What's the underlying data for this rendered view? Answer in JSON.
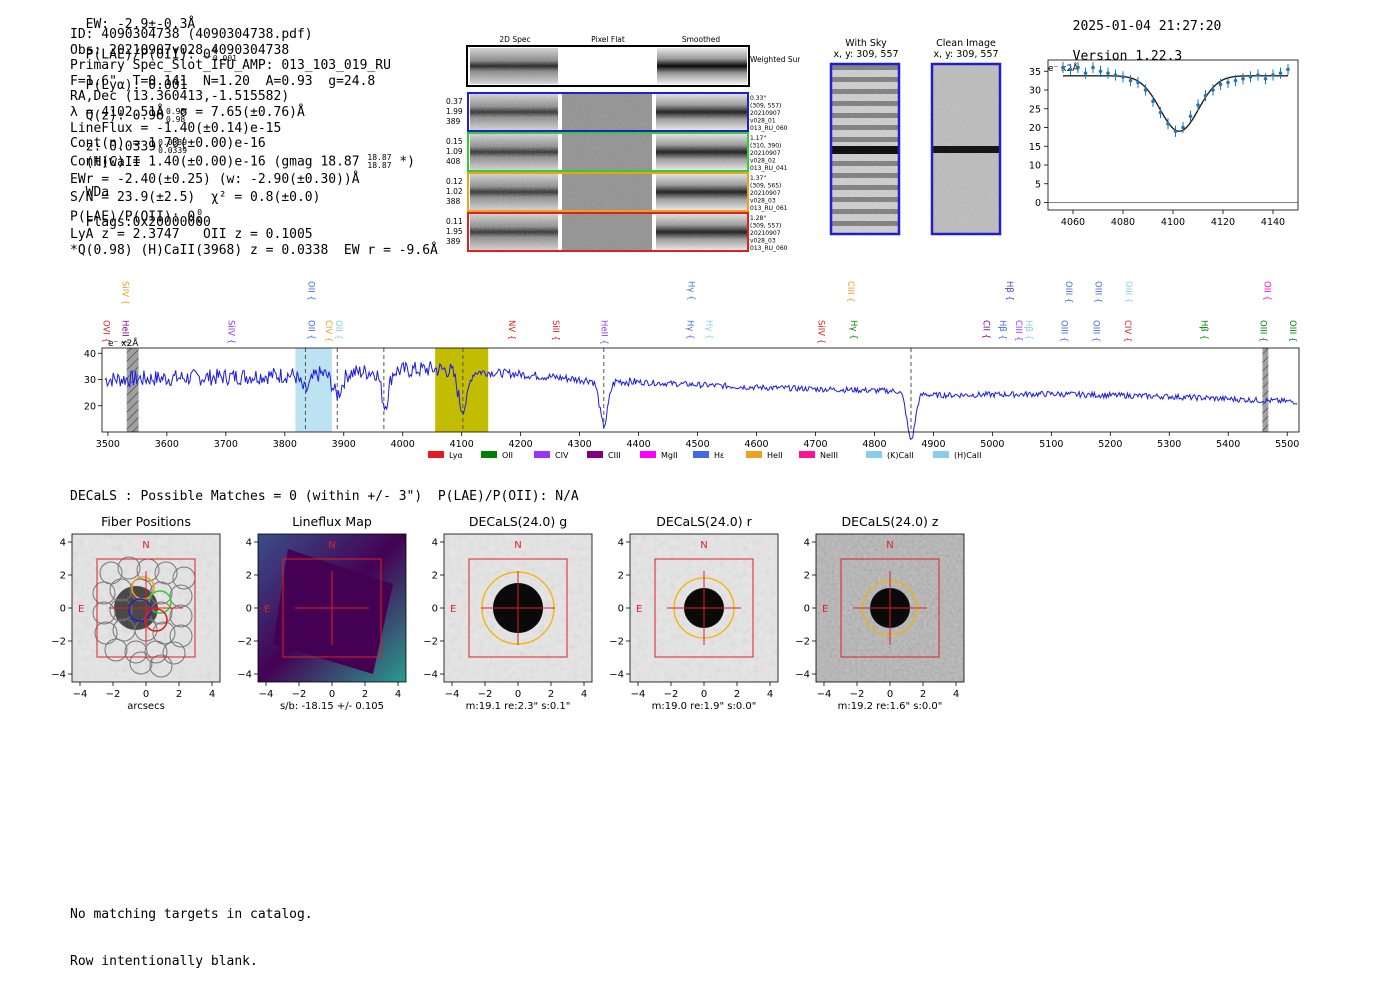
{
  "header": {
    "ew": "EW: -2.9±-0.3Å",
    "plae": "P(LAE)/P(OII): 0",
    "plae_sup": "0",
    "plae_sub": "0.001",
    "plya": "P(Lyα): 0.001",
    "qz": "Q(z): 0.98",
    "qz_sup": "0.98",
    "qz_sub": "0.98",
    "z": "z: 0.0339",
    "z_sup": "0.0339",
    "z_sub": "0.0339",
    "line": "(H)CaII",
    "wda": "WDa",
    "flags": "Flags:0x20000000",
    "datetime": "2025-01-04 21:27:20",
    "version": "Version 1.22.3"
  },
  "info": {
    "lines": [
      "ID: 4090304738 (4090304738.pdf)",
      "Obs: 20210907v028_4090304738",
      "Primary Spec_Slot_IFU_AMP: 013_103_019_RU",
      "F=1.6\"  T=0.141  N=1.20  A=0.93  g=24.8",
      "RA,Dec (13.360413,-1.515582)",
      "λ = 4102.51Å  σ = 7.65(±0.76)Å",
      "LineFlux = -1.40(±0.14)e-15",
      "Cont(n) = 1.70(±0.00)e-16"
    ],
    "contw": "Cont(w) = 1.40(±0.00)e-16 (gmag 18.87",
    "contw_sup": "18.87",
    "contw_sub": "18.87",
    "contw_end": "*)",
    "lines2": [
      "EWr = -2.40(±0.25) (w: -2.90(±0.30))Å",
      "S/N = 23.9(±2.5)  χ² = 0.8(±0.0)"
    ],
    "plae2": "P(LAE)/P(OII): 0",
    "plae2_sup": "0",
    "plae2_sub": "0",
    "lines3": [
      "LyA z = 2.3747   OII z = 0.1005",
      "*Q(0.98) (H)CaII(3968) z = 0.0338  EW r = -9.6Å"
    ]
  },
  "stamps": {
    "col_titles": [
      "2D Spec",
      "Pixel Flat",
      "Smoothed"
    ],
    "weighted_label": "Weighted Sum",
    "rows": [
      {
        "color": "#1f1fd0",
        "left": [
          "0.37",
          "1.99",
          "389"
        ],
        "right": [
          "0.33\"",
          "(309, 557)",
          "20210907",
          "v028_01",
          "013_RU_060"
        ]
      },
      {
        "color": "#33cc33",
        "left": [
          "0.15",
          "1.09",
          "408"
        ],
        "right": [
          "1.17\"",
          "(310, 390)",
          "20210907",
          "v028_02",
          "013_RU_041"
        ]
      },
      {
        "color": "#f0a020",
        "left": [
          "0.12",
          "1.02",
          "388"
        ],
        "right": [
          "1.37\"",
          "(309, 565)",
          "20210907",
          "v028_03",
          "013_RU_061"
        ]
      },
      {
        "color": "#e02020",
        "left": [
          "0.11",
          "1.95",
          "389"
        ],
        "right": [
          "1.28\"",
          "(309, 557)",
          "20210907",
          "v028_03",
          "013_RU_060"
        ]
      }
    ]
  },
  "sky_cutouts": {
    "with_sky_title": "With Sky",
    "with_sky_xy": "x, y: 309, 557",
    "clean_title": "Clean Image",
    "clean_xy": "x, y: 309, 557"
  },
  "zoom_fit": {
    "unit_label": "e⁻ x2Å",
    "chart_data": {
      "type": "scatter",
      "x_ticks": [
        4060,
        4080,
        4100,
        4120,
        4140
      ],
      "y_ticks": [
        0,
        5,
        10,
        15,
        20,
        25,
        30,
        35
      ],
      "xlim": [
        4050,
        4150
      ],
      "ylim": [
        -2,
        38
      ],
      "points_x": [
        4056,
        4059,
        4062,
        4065,
        4068,
        4071,
        4074,
        4077,
        4080,
        4083,
        4086,
        4089,
        4092,
        4095,
        4098,
        4101,
        4104,
        4107,
        4110,
        4113,
        4116,
        4119,
        4122,
        4125,
        4128,
        4131,
        4134,
        4137,
        4140,
        4143,
        4146
      ],
      "points_y": [
        36,
        35.5,
        36,
        34.5,
        36,
        35,
        34.5,
        34,
        33.5,
        32.5,
        32,
        30,
        27,
        24,
        21,
        19,
        20,
        23,
        26,
        28.5,
        30,
        31.5,
        32,
        32.5,
        33,
        33.5,
        34,
        33,
        34,
        34.5,
        35.5
      ],
      "model": {
        "continuum": 33.8,
        "center": 4102.5,
        "depth": 14.8,
        "sigma": 7.65
      }
    }
  },
  "main_spectrum": {
    "unit_label": "e⁻ x2Å",
    "chart_data": {
      "type": "line",
      "xlim": [
        3490,
        5520
      ],
      "ylim": [
        10,
        42
      ],
      "x_ticks": [
        3500,
        3600,
        3700,
        3800,
        3900,
        4000,
        4100,
        4200,
        4300,
        4400,
        4500,
        4600,
        4700,
        4800,
        4900,
        5000,
        5100,
        5200,
        5300,
        5400,
        5500
      ],
      "y_ticks": [
        20,
        30,
        40
      ],
      "continuum_knots": [
        [
          3490,
          30
        ],
        [
          3700,
          31
        ],
        [
          3850,
          32
        ],
        [
          3950,
          33
        ],
        [
          4050,
          34
        ],
        [
          4200,
          32
        ],
        [
          4300,
          30
        ],
        [
          4400,
          29
        ],
        [
          4600,
          27
        ],
        [
          4850,
          25.5
        ],
        [
          4900,
          24
        ],
        [
          5100,
          24.5
        ],
        [
          5300,
          23.5
        ],
        [
          5520,
          21.5
        ]
      ],
      "absorptions": [
        {
          "center": 3835,
          "depth": 6,
          "sigma": 8
        },
        {
          "center": 3889,
          "depth": 8,
          "sigma": 8
        },
        {
          "center": 3970,
          "depth": 13,
          "sigma": 6
        },
        {
          "center": 4102,
          "depth": 15,
          "sigma": 7.7
        },
        {
          "center": 4341,
          "depth": 17,
          "sigma": 7
        },
        {
          "center": 4862,
          "depth": 18,
          "sigma": 7
        }
      ],
      "dashed_lines": [
        3835,
        3889,
        3968,
        4102,
        4341,
        4862
      ],
      "shaded_regions": [
        {
          "x1": 3532,
          "x2": 3552,
          "color": "#a0a0a0",
          "hatch": true
        },
        {
          "x1": 3818,
          "x2": 3880,
          "color": "#bde3f2",
          "hatch": false
        },
        {
          "x1": 4055,
          "x2": 4145,
          "color": "#c2bd00",
          "hatch": false
        },
        {
          "x1": 5458,
          "x2": 5468,
          "color": "#a0a0a0",
          "hatch": true
        }
      ],
      "line_labels_upper": [
        {
          "label": "SiIV",
          "wave": 3530,
          "color": "#f0a020"
        },
        {
          "label": "OII",
          "wave": 3845,
          "color": "#4169e1"
        },
        {
          "label": "Hγ",
          "wave": 4490,
          "color": "#4169e1"
        },
        {
          "label": "CIII",
          "wave": 4760,
          "color": "#f0a020"
        },
        {
          "label": "Hβ",
          "wave": 5030,
          "color": "#6633cc"
        },
        {
          "label": "OIII",
          "wave": 5130,
          "color": "#4169e1"
        },
        {
          "label": "OIII",
          "wave": 5180,
          "color": "#4169e1"
        },
        {
          "label": "OIII",
          "wave": 5232,
          "color": "#87ceeb"
        },
        {
          "label": "OII",
          "wave": 5467,
          "color": "#ff00cc"
        }
      ],
      "line_labels_lower": [
        {
          "label": "OVI",
          "wave": 3498,
          "color": "#e02020"
        },
        {
          "label": "HeII",
          "wave": 3530,
          "color": "#800080"
        },
        {
          "label": "SiIV",
          "wave": 3710,
          "color": "#9933ff"
        },
        {
          "label": "OII",
          "wave": 3845,
          "color": "#4169e1"
        },
        {
          "label": "CIV",
          "wave": 3875,
          "color": "#f0a020"
        },
        {
          "label": "OII",
          "wave": 3892,
          "color": "#87ceeb"
        },
        {
          "label": "NV",
          "wave": 4185,
          "color": "#e02020"
        },
        {
          "label": "SiII",
          "wave": 4260,
          "color": "#e02020"
        },
        {
          "label": "HeII",
          "wave": 4342,
          "color": "#9933ff"
        },
        {
          "label": "Hγ",
          "wave": 4488,
          "color": "#4169e1"
        },
        {
          "label": "Hγ",
          "wave": 4520,
          "color": "#87ceeb"
        },
        {
          "label": "SiIV",
          "wave": 4710,
          "color": "#e02020"
        },
        {
          "label": "Hγ",
          "wave": 4765,
          "color": "#008000"
        },
        {
          "label": "CII",
          "wave": 4990,
          "color": "#800080"
        },
        {
          "label": "Hβ",
          "wave": 5018,
          "color": "#4169e1"
        },
        {
          "label": "CIII",
          "wave": 5045,
          "color": "#9933ff"
        },
        {
          "label": "Hβ",
          "wave": 5062,
          "color": "#87ceeb"
        },
        {
          "label": "OIII",
          "wave": 5122,
          "color": "#4169e1"
        },
        {
          "label": "OIII",
          "wave": 5177,
          "color": "#4169e1"
        },
        {
          "label": "CIV",
          "wave": 5230,
          "color": "#e02020"
        },
        {
          "label": "Hβ",
          "wave": 5360,
          "color": "#008000"
        },
        {
          "label": "OIII",
          "wave": 5460,
          "color": "#008000"
        },
        {
          "label": "OIII",
          "wave": 5510,
          "color": "#008000"
        }
      ],
      "legend": [
        {
          "label": "Lyα",
          "color": "#e41a1c"
        },
        {
          "label": "OII",
          "color": "#008000"
        },
        {
          "label": "CIV",
          "color": "#9933ff"
        },
        {
          "label": "CIII",
          "color": "#800080"
        },
        {
          "label": "MgII",
          "color": "#ff00ff"
        },
        {
          "label": "Hε",
          "color": "#4169e1"
        },
        {
          "label": "HeII",
          "color": "#f0a020"
        },
        {
          "label": "NeIII",
          "color": "#ff1493"
        },
        {
          "label": "(K)CaII",
          "color": "#87ceeb"
        },
        {
          "label": "(H)CaII",
          "color": "#87ceeb"
        }
      ]
    }
  },
  "decals": {
    "header": "DECaLS : Possible Matches = 0 (within +/- 3\")  P(LAE)/P(OII): N/A",
    "panels": [
      {
        "title": "Fiber Positions",
        "caption": "arcsecs"
      },
      {
        "title": "Lineflux Map",
        "caption": "s/b: -18.15 +/- 0.105"
      },
      {
        "title": "DECaLS(24.0) g",
        "caption": "m:19.1  re:2.3\"  s:0.1\""
      },
      {
        "title": "DECaLS(24.0) r",
        "caption": "m:19.0  re:1.9\"  s:0.0\""
      },
      {
        "title": "DECaLS(24.0) z",
        "caption": "m:19.2  re:1.6\"  s:0.0\""
      }
    ],
    "axis_ticks": [
      "−4",
      "−2",
      "0",
      "2",
      "4"
    ],
    "north": "N",
    "east": "E"
  },
  "footer": {
    "line1": "No matching targets in catalog.",
    "line2": "Row intentionally blank."
  },
  "colors": {
    "spectrum": "#1c1ce0",
    "fit_points": "#1f77b4",
    "crosshair": "#e02020",
    "aperture": "#f0b400"
  }
}
